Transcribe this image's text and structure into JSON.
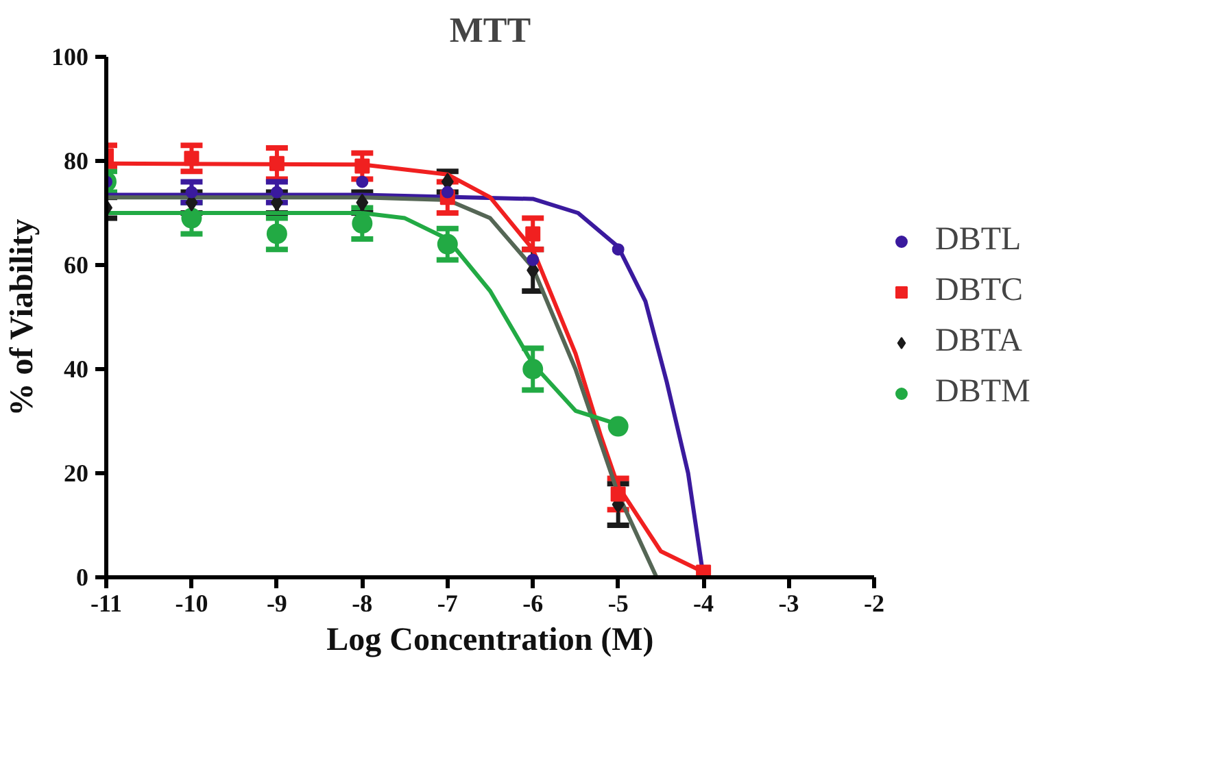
{
  "chart_data": {
    "type": "scatter",
    "title": "MTT",
    "xlabel": "Log Concentration (M)",
    "ylabel": "% of Viability",
    "xlim": [
      -11,
      -2
    ],
    "xticks": [
      -11,
      -10,
      -9,
      -8,
      -7,
      -6,
      -5,
      -4,
      -3,
      -2
    ],
    "ylim": [
      0,
      100
    ],
    "yticks": [
      0,
      20,
      40,
      60,
      80,
      100
    ],
    "grid": false,
    "legend": "right",
    "series": [
      {
        "name": "DBTL",
        "color": "#3a1a9e",
        "marker": "circle",
        "x": [
          -11,
          -10,
          -9,
          -8,
          -7,
          -6,
          -5
        ],
        "values": [
          76,
          74,
          74,
          76,
          74,
          61,
          63
        ],
        "errors": [
          null,
          2,
          2,
          null,
          null,
          null,
          null
        ]
      },
      {
        "name": "DBTC",
        "color": "#f02020",
        "marker": "square",
        "x": [
          -11,
          -10,
          -9,
          -8,
          -7,
          -6,
          -5,
          -4
        ],
        "values": [
          81,
          80.5,
          79.5,
          79,
          73,
          66,
          16,
          1
        ],
        "errors": [
          2,
          2.5,
          3,
          2.5,
          3,
          3,
          3,
          null
        ]
      },
      {
        "name": "DBTA",
        "color": "#1a1a1a",
        "marker": "diamond",
        "x": [
          -11,
          -10,
          -9,
          -8,
          -7,
          -6,
          -5
        ],
        "values": [
          71,
          72,
          72,
          72,
          76,
          59,
          14
        ],
        "errors": [
          2,
          2,
          2,
          2,
          2,
          4,
          4
        ]
      },
      {
        "name": "DBTM",
        "color": "#22aa44",
        "marker": "circle",
        "x": [
          -11,
          -10,
          -9,
          -8,
          -7,
          -6,
          -5
        ],
        "values": [
          76,
          69,
          66,
          68,
          64,
          40,
          29
        ],
        "errors": [
          2,
          3,
          3,
          3,
          3,
          4,
          null
        ]
      },
      {
        "type": "line",
        "color": "#3a1a9e",
        "x": [
          -11,
          -8,
          -6,
          -5.47,
          -5,
          -4.68,
          -4.43,
          -4.18,
          -4
        ],
        "values": [
          73.5,
          73.5,
          72.7,
          70,
          63.5,
          53,
          37.5,
          20,
          0
        ]
      },
      {
        "type": "line",
        "color": "#f02020",
        "x": [
          -11,
          -8,
          -7,
          -6.5,
          -6,
          -5.5,
          -5.2,
          -5,
          -4.5,
          -4
        ],
        "values": [
          79.5,
          79.3,
          77.4,
          73,
          63,
          43,
          27,
          17.5,
          5,
          1
        ]
      },
      {
        "type": "line",
        "color": "#556655",
        "x": [
          -11,
          -8,
          -7,
          -6.5,
          -6,
          -5.5,
          -5,
          -4.55
        ],
        "values": [
          73,
          73,
          72.5,
          69,
          59.5,
          40,
          16,
          0
        ]
      },
      {
        "type": "line",
        "color": "#22aa44",
        "x": [
          -11,
          -8,
          -7.5,
          -7,
          -6.5,
          -6,
          -5.5,
          -5
        ],
        "values": [
          70,
          70,
          69,
          65,
          55,
          41,
          32,
          29.4
        ]
      }
    ]
  }
}
